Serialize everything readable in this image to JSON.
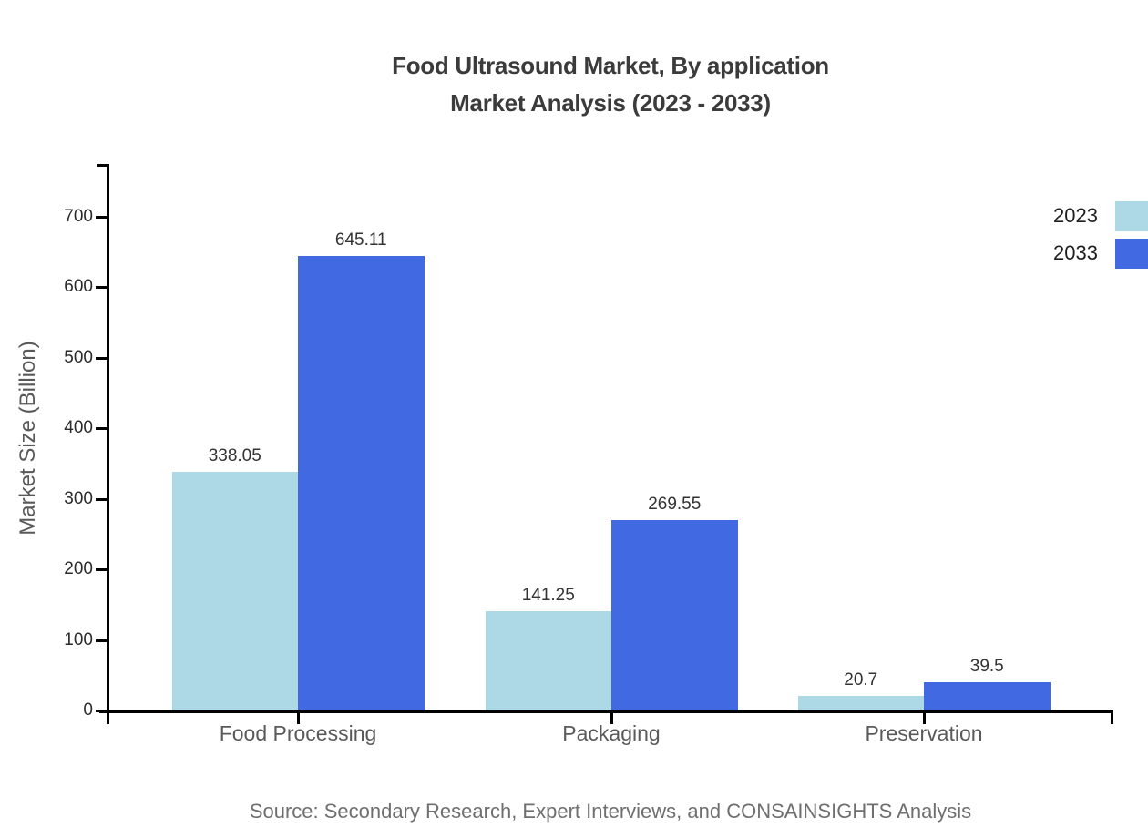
{
  "title": {
    "line1": "Food Ultrasound Market, By application",
    "line2": "Market Analysis (2023 - 2033)"
  },
  "chart_data": {
    "type": "bar",
    "categories": [
      "Food Processing",
      "Packaging",
      "Preservation"
    ],
    "series": [
      {
        "name": "2023",
        "color": "#add8e6",
        "values": [
          338.05,
          141.25,
          20.7
        ]
      },
      {
        "name": "2033",
        "color": "#4169e1",
        "values": [
          645.11,
          269.55,
          39.5
        ]
      }
    ],
    "value_labels": [
      [
        "338.05",
        "141.25",
        "20.7"
      ],
      [
        "645.11",
        "269.55",
        "39.5"
      ]
    ],
    "xlabel": "",
    "ylabel": "Market Size (Billion)",
    "ylim": [
      0,
      775
    ],
    "yticks": [
      "0",
      "100",
      "200",
      "300",
      "400",
      "500",
      "600",
      "700"
    ],
    "grid": false,
    "legend_position": "top-right"
  },
  "source": "Source: Secondary Research, Expert Interviews, and CONSAINSIGHTS Analysis",
  "colors": {
    "series_2023": "#add8e6",
    "series_2033": "#4169e1",
    "axis": "#000000",
    "title_text": "#3b3b3b",
    "category_text": "#5a5a5a",
    "source_text": "#6f6f6f"
  }
}
